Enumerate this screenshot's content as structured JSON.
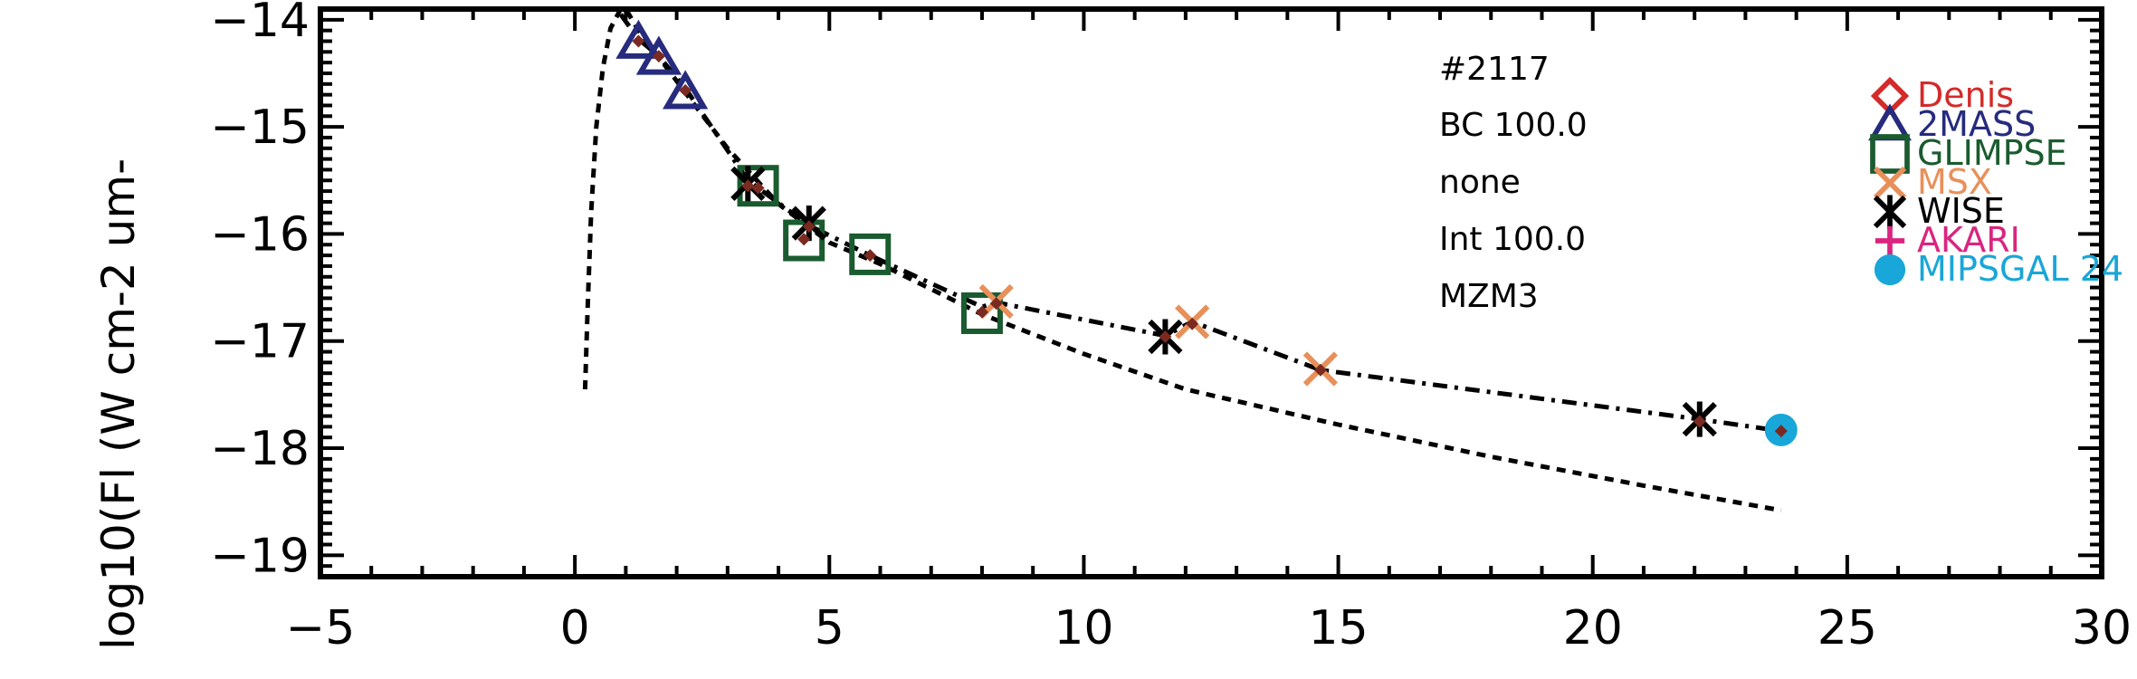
{
  "chart_data": {
    "type": "scatter",
    "ylabel": "log10(Fl (W cm-2 um-",
    "xlabel": "",
    "xlim": [
      -5,
      30
    ],
    "ylim": [
      -19.2,
      -13.9
    ],
    "x_ticks": [
      -5,
      0,
      5,
      10,
      15,
      20,
      25,
      30
    ],
    "x_tick_labels": [
      "−5",
      "0",
      "5",
      "10",
      "15",
      "20",
      "25",
      "30"
    ],
    "y_ticks": [
      -19,
      -18,
      -17,
      -16,
      -15,
      -14
    ],
    "y_tick_labels": [
      "−19",
      "−18",
      "−17",
      "−16",
      "−15",
      "−14"
    ],
    "annotations": [
      "#2117",
      "BC 100.0",
      "none",
      "Int 100.0",
      "MZM3"
    ],
    "legend": [
      {
        "name": "Denis",
        "marker": "diamond",
        "color": "#d42a2a"
      },
      {
        "name": "2MASS",
        "marker": "triangle",
        "color": "#262b7e"
      },
      {
        "name": "GLIMPSE",
        "marker": "square",
        "color": "#1a5b2f"
      },
      {
        "name": "MSX",
        "marker": "x",
        "color": "#e8905a"
      },
      {
        "name": "WISE",
        "marker": "asterisk",
        "color": "#000000"
      },
      {
        "name": "AKARI",
        "marker": "plus",
        "color": "#d9257f"
      },
      {
        "name": "MIPSGAL 24",
        "marker": "circle",
        "color": "#19a6d8"
      }
    ],
    "series": [
      {
        "name": "2MASS",
        "marker": "triangle",
        "color": "#262b7e",
        "points": [
          [
            1.25,
            -14.21
          ],
          [
            1.65,
            -14.36
          ],
          [
            2.17,
            -14.68
          ]
        ]
      },
      {
        "name": "GLIMPSE",
        "marker": "square",
        "color": "#1a5b2f",
        "points": [
          [
            3.6,
            -15.55
          ],
          [
            4.5,
            -16.06
          ],
          [
            5.8,
            -16.19
          ],
          [
            8.0,
            -16.74
          ]
        ]
      },
      {
        "name": "MSX",
        "marker": "x",
        "color": "#e8905a",
        "points": [
          [
            8.28,
            -16.63
          ],
          [
            12.13,
            -16.82
          ],
          [
            14.65,
            -17.26
          ]
        ]
      },
      {
        "name": "WISE",
        "marker": "asterisk",
        "color": "#000000",
        "points": [
          [
            3.4,
            -15.53
          ],
          [
            4.6,
            -15.9
          ],
          [
            11.6,
            -16.96
          ],
          [
            22.1,
            -17.73
          ]
        ]
      },
      {
        "name": "MIPSGAL 24",
        "marker": "circle",
        "color": "#19a6d8",
        "points": [
          [
            23.7,
            -17.83
          ]
        ]
      }
    ],
    "model_points": {
      "marker": "small-diamond",
      "color": "#7a2a20",
      "points": [
        [
          1.25,
          -14.2
        ],
        [
          1.65,
          -14.34
        ],
        [
          2.17,
          -14.66
        ],
        [
          3.4,
          -15.55
        ],
        [
          3.6,
          -15.57
        ],
        [
          4.5,
          -16.05
        ],
        [
          4.6,
          -15.93
        ],
        [
          5.8,
          -16.2
        ],
        [
          8.0,
          -16.73
        ],
        [
          8.28,
          -16.65
        ],
        [
          11.6,
          -16.96
        ],
        [
          12.13,
          -16.84
        ],
        [
          14.65,
          -17.27
        ],
        [
          22.1,
          -17.75
        ],
        [
          23.7,
          -17.84
        ]
      ]
    },
    "curves": [
      {
        "style": "dotted",
        "points": [
          [
            0.2,
            -17.45
          ],
          [
            0.25,
            -16.7
          ],
          [
            0.32,
            -15.8
          ],
          [
            0.42,
            -15.0
          ],
          [
            0.55,
            -14.45
          ],
          [
            0.7,
            -14.08
          ],
          [
            0.9,
            -13.9
          ],
          [
            1.0,
            -13.9
          ],
          [
            1.25,
            -14.1
          ],
          [
            1.65,
            -14.35
          ],
          [
            2.17,
            -14.68
          ],
          [
            3.0,
            -15.2
          ],
          [
            4.0,
            -15.72
          ],
          [
            5.0,
            -16.08
          ],
          [
            6.0,
            -16.28
          ],
          [
            8.0,
            -16.75
          ],
          [
            10.0,
            -17.12
          ],
          [
            12.0,
            -17.45
          ],
          [
            15.0,
            -17.78
          ],
          [
            18.0,
            -18.08
          ],
          [
            21.0,
            -18.35
          ],
          [
            23.7,
            -18.58
          ]
        ]
      },
      {
        "style": "dash-dot",
        "points": [
          [
            0.9,
            -13.95
          ],
          [
            1.25,
            -14.18
          ],
          [
            1.65,
            -14.34
          ],
          [
            2.17,
            -14.64
          ],
          [
            3.4,
            -15.5
          ],
          [
            4.6,
            -15.92
          ],
          [
            5.8,
            -16.2
          ],
          [
            8.0,
            -16.68
          ],
          [
            8.28,
            -16.64
          ],
          [
            11.6,
            -16.95
          ],
          [
            12.13,
            -16.82
          ],
          [
            14.65,
            -17.27
          ],
          [
            22.1,
            -17.73
          ],
          [
            23.7,
            -17.84
          ]
        ]
      }
    ],
    "grid": false
  }
}
